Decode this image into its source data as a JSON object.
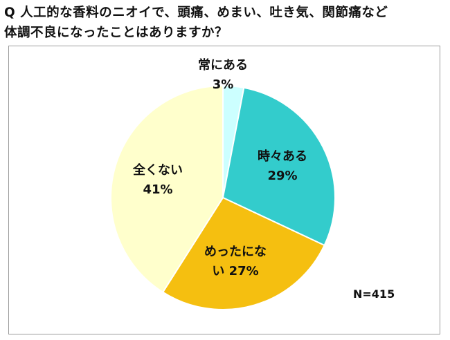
{
  "question": {
    "line1": "Q  人工的な香料のニオイで、頭痛、めまい、吐き気、関節痛など",
    "line2": "体調不良になったことはありますか？"
  },
  "chart_data": {
    "type": "pie",
    "title": "",
    "start_angle_deg": 0,
    "direction": "clockwise",
    "slices": [
      {
        "label": "常にある",
        "value": 3,
        "percent_label": "3%",
        "color": "#CCFFFF"
      },
      {
        "label": "時々ある",
        "value": 29,
        "percent_label": "29%",
        "color": "#33CCCC"
      },
      {
        "label": "めったにない",
        "value": 27,
        "percent_label": "い 27%",
        "label_line1": "めったにな",
        "color": "#F5BF10"
      },
      {
        "label": "全くない",
        "value": 41,
        "percent_label": "41%",
        "color": "#FFFFCC"
      }
    ],
    "note": "N=415"
  }
}
